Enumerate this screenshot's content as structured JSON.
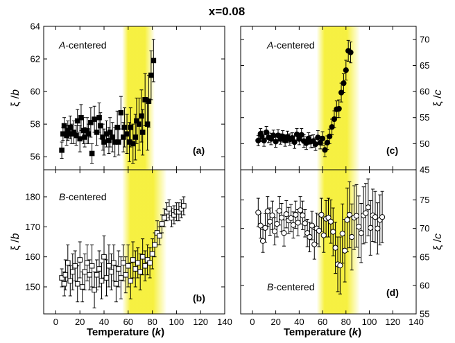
{
  "figure_title": "x=0.08",
  "x_axis_title": "Temperature",
  "x_axis_unit": "k",
  "colors": {
    "band": "#f5ee20",
    "ink": "#000000"
  },
  "chart_data": [
    {
      "panel": "(a)",
      "type": "scatter",
      "annotation_prefix": "A",
      "annotation_suffix": "-centered",
      "ylabel_symbol": "ξ",
      "ylabel_divisor": "b",
      "y_axis_side": "left",
      "xlim": [
        -10,
        140
      ],
      "ylim": [
        55.2,
        64
      ],
      "yticks": [
        56,
        58,
        60,
        62,
        64
      ],
      "highlight_band": [
        55,
        82
      ],
      "marker": "filled-square",
      "x": [
        5,
        6,
        7,
        9,
        10,
        12,
        13,
        15,
        17,
        18,
        20,
        21,
        23,
        24,
        26,
        27,
        29,
        30,
        32,
        34,
        36,
        37,
        39,
        40,
        42,
        44,
        45,
        47,
        49,
        51,
        52,
        54,
        56,
        57,
        59,
        61,
        62,
        64,
        66,
        67,
        69,
        71,
        72,
        74,
        76,
        77,
        79,
        81
      ],
      "y": [
        56.4,
        57.4,
        57.9,
        57.3,
        57.6,
        57.8,
        57.4,
        57.5,
        57.3,
        58.2,
        57.1,
        58.4,
        57.6,
        57.2,
        57.6,
        57.4,
        58.1,
        56.2,
        58.3,
        57.5,
        58.4,
        57.9,
        57.2,
        56.9,
        57.4,
        57.0,
        57.5,
        57.2,
        56.9,
        57.8,
        56.9,
        58.7,
        57.2,
        57.8,
        57.4,
        56.9,
        57.8,
        56.8,
        57.2,
        58.2,
        58.0,
        58.5,
        57.5,
        59.5,
        58.0,
        59.4,
        61.0,
        61.9
      ],
      "err": [
        0.5,
        0.4,
        0.5,
        0.6,
        0.6,
        0.7,
        0.6,
        0.7,
        0.6,
        0.7,
        0.8,
        0.8,
        0.8,
        0.6,
        0.8,
        0.6,
        0.9,
        0.6,
        0.8,
        0.8,
        0.9,
        0.8,
        0.8,
        0.8,
        0.8,
        0.8,
        0.9,
        0.9,
        0.9,
        1.0,
        0.8,
        1.0,
        0.9,
        1.2,
        1.2,
        1.2,
        1.2,
        1.2,
        1.4,
        1.4,
        1.6,
        1.6,
        1.4,
        1.6,
        1.6,
        1.6,
        1.5,
        1.3
      ]
    },
    {
      "panel": "(b)",
      "type": "scatter",
      "annotation_prefix": "B",
      "annotation_suffix": "-centered",
      "ylabel_symbol": "ξ",
      "ylabel_divisor": "b",
      "y_axis_side": "left",
      "xlim": [
        -10,
        140
      ],
      "ylim": [
        141,
        189
      ],
      "yticks": [
        150,
        160,
        170,
        180
      ],
      "highlight_band": [
        55,
        92
      ],
      "marker": "open-square",
      "x": [
        5,
        7,
        8,
        10,
        12,
        14,
        16,
        18,
        20,
        22,
        24,
        26,
        28,
        30,
        32,
        34,
        36,
        38,
        40,
        42,
        44,
        46,
        48,
        50,
        52,
        54,
        56,
        58,
        60,
        62,
        64,
        66,
        68,
        70,
        72,
        74,
        76,
        78,
        80,
        82,
        84,
        86,
        88,
        90,
        92,
        94,
        96,
        98,
        100,
        102,
        104,
        106
      ],
      "y": [
        153,
        151,
        154,
        158,
        152,
        155,
        157,
        151,
        159,
        150,
        155,
        158,
        154,
        157,
        149,
        154,
        156,
        152,
        160,
        153,
        157,
        155,
        158,
        151,
        156,
        153,
        158,
        154,
        157,
        152,
        159,
        156,
        158,
        155,
        160,
        157,
        159,
        158,
        161,
        164,
        168,
        167,
        171,
        173,
        175,
        176,
        173,
        174,
        175,
        175,
        176,
        177
      ],
      "err": [
        3,
        4,
        5,
        6,
        5,
        6,
        5,
        6,
        6,
        5,
        6,
        6,
        5,
        7,
        6,
        5,
        6,
        6,
        7,
        6,
        7,
        6,
        6,
        6,
        6,
        7,
        6,
        6,
        7,
        6,
        6,
        6,
        5,
        6,
        6,
        5,
        5,
        5,
        5,
        4,
        4,
        3,
        3,
        3,
        3,
        3,
        3,
        3,
        3,
        3,
        3,
        3
      ]
    },
    {
      "panel": "(c)",
      "type": "scatter",
      "annotation_prefix": "A",
      "annotation_suffix": "-centered",
      "ylabel_symbol": "ξ",
      "ylabel_divisor": "c",
      "y_axis_side": "right",
      "xlim": [
        -10,
        140
      ],
      "ylim": [
        45,
        72.5
      ],
      "yticks": [
        45,
        50,
        55,
        60,
        65,
        70
      ],
      "highlight_band": [
        55,
        92
      ],
      "marker": "filled-circle",
      "x": [
        5,
        7,
        8,
        10,
        12,
        14,
        16,
        18,
        20,
        22,
        24,
        26,
        28,
        30,
        32,
        34,
        36,
        38,
        40,
        42,
        44,
        46,
        48,
        50,
        52,
        54,
        56,
        58,
        60,
        62,
        64,
        66,
        68,
        70,
        72,
        74,
        76,
        78,
        80,
        82,
        84
      ],
      "y": [
        50.6,
        51.9,
        51.4,
        50.6,
        52.2,
        51.2,
        50.9,
        51.6,
        50.4,
        51.6,
        50.9,
        51.4,
        50.6,
        51.3,
        50.8,
        51.1,
        50.3,
        51.8,
        50.9,
        51.7,
        50.5,
        50.1,
        51.0,
        50.4,
        50.5,
        49.9,
        51.2,
        50.2,
        51.0,
        48.8,
        50.2,
        51.4,
        53.2,
        54.7,
        56.6,
        56.7,
        59.8,
        61.6,
        64.1,
        67.8,
        67.5
      ],
      "err": [
        1.0,
        1.0,
        1.0,
        1.1,
        1.1,
        1.0,
        1.1,
        1.0,
        1.1,
        1.1,
        1.0,
        1.1,
        1.1,
        1.1,
        1.1,
        1.0,
        1.2,
        1.1,
        1.1,
        1.2,
        1.2,
        1.2,
        1.1,
        1.2,
        1.2,
        1.2,
        1.3,
        1.2,
        1.3,
        1.3,
        1.3,
        1.4,
        1.5,
        1.6,
        1.6,
        1.7,
        1.8,
        1.8,
        1.9,
        2.0,
        2.0
      ]
    },
    {
      "panel": "(d)",
      "type": "scatter",
      "annotation_prefix": "B",
      "annotation_suffix": "-centered",
      "ylabel_symbol": "ξ",
      "ylabel_divisor": "c",
      "y_axis_side": "right",
      "xlim": [
        -10,
        140
      ],
      "ylim": [
        55,
        80.3
      ],
      "yticks": [
        55,
        60,
        65,
        70,
        75
      ],
      "highlight_band": [
        55,
        92
      ],
      "marker": "open-circle",
      "x": [
        5,
        7,
        9,
        11,
        13,
        15,
        17,
        19,
        21,
        23,
        25,
        27,
        29,
        31,
        33,
        35,
        37,
        39,
        41,
        43,
        45,
        47,
        49,
        51,
        53,
        55,
        57,
        59,
        61,
        63,
        65,
        67,
        69,
        71,
        73,
        75,
        77,
        79,
        81,
        83,
        85,
        87,
        89,
        91,
        93,
        95,
        97,
        99,
        101,
        103,
        105,
        107,
        109,
        111
      ],
      "y": [
        72.8,
        70.5,
        67.8,
        70.1,
        73.0,
        71.2,
        72.3,
        69.5,
        70.8,
        73.1,
        71.9,
        69.2,
        72.5,
        71.4,
        71.8,
        70.6,
        72.4,
        71.0,
        73.2,
        72.3,
        70.9,
        69.2,
        68.5,
        70.5,
        67.2,
        70.0,
        69.6,
        72.4,
        68.8,
        71.7,
        71.9,
        71.2,
        69.4,
        66.6,
        63.7,
        63.5,
        69.1,
        66.1,
        71.5,
        72.4,
        68.5,
        71.9,
        72.2,
        70.3,
        69.2,
        72.3,
        72.7,
        73.7,
        70.1,
        72.3,
        72.0,
        70.0,
        71.5,
        72.0
      ],
      "err": [
        2.5,
        2.2,
        2.0,
        2.5,
        2.6,
        2.4,
        2.5,
        2.4,
        2.3,
        2.5,
        2.5,
        2.3,
        2.4,
        2.3,
        2.4,
        2.3,
        2.4,
        2.3,
        2.4,
        2.5,
        2.4,
        2.4,
        2.6,
        2.5,
        2.6,
        2.7,
        2.8,
        2.9,
        3.0,
        3.2,
        3.4,
        3.8,
        4.2,
        4.5,
        4.8,
        5.0,
        5.2,
        5.5,
        5.6,
        5.8,
        5.8,
        5.6,
        5.5,
        5.4,
        5.2,
        5.0,
        5.2,
        5.0,
        4.8,
        4.6,
        4.5,
        4.5,
        4.4,
        4.5
      ]
    }
  ],
  "x_ticks": [
    0,
    20,
    40,
    60,
    80,
    100,
    120,
    140
  ]
}
